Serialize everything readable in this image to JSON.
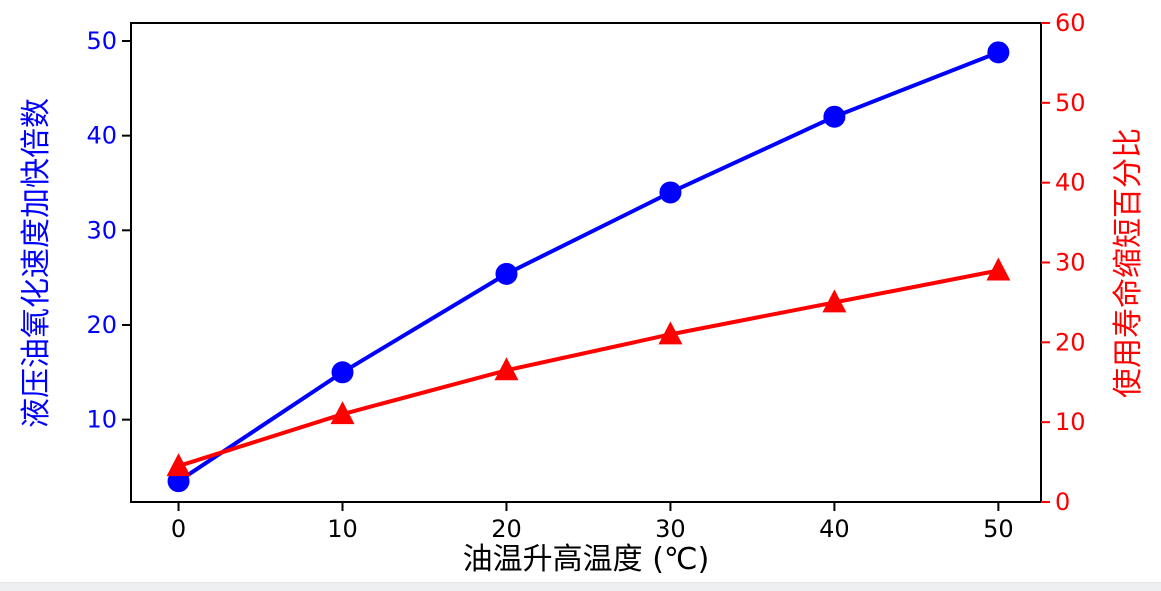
{
  "figure": {
    "background": "#ffffff",
    "bottom_strip_color": "#edeff1"
  },
  "chart_data": {
    "type": "line",
    "title": "",
    "xlabel": "油温升高温度 (℃)",
    "x": [
      0,
      10,
      20,
      30,
      40,
      50
    ],
    "x_ticks": [
      0,
      10,
      20,
      30,
      40,
      50
    ],
    "xlim": [
      -2.9,
      52.6
    ],
    "grid": false,
    "legend": "none",
    "axes": {
      "left": {
        "label": "液压油氧化速度加快倍数",
        "ticks": [
          10,
          20,
          30,
          40,
          50
        ],
        "ylim": [
          1.3,
          51.9
        ],
        "label_color": "#0000ff",
        "tick_label_color": "#0000ff",
        "tick_mark_color": "#000000"
      },
      "right": {
        "label": "使用寿命缩短百分比",
        "ticks": [
          0,
          10,
          20,
          30,
          40,
          50,
          60
        ],
        "ylim": [
          0,
          60
        ],
        "label_color": "#ff0000",
        "tick_label_color": "#ff0000",
        "tick_mark_color": "#ff0000"
      },
      "bottom": {
        "tick_label_color": "#000000",
        "tick_mark_color": "#000000",
        "spine_color": "#000000"
      }
    },
    "series": [
      {
        "name": "液压油氧化速度加快倍数",
        "axis": "left",
        "color": "#0000ff",
        "marker": "circle",
        "line_width": 4,
        "marker_size": 22,
        "values": [
          3.5,
          15,
          25.4,
          34,
          42,
          48.8
        ]
      },
      {
        "name": "使用寿命缩短百分比",
        "axis": "right",
        "color": "#ff0000",
        "marker": "triangle-up",
        "line_width": 4,
        "marker_size": 24,
        "values": [
          4.5,
          11,
          16.5,
          21,
          25,
          29
        ]
      }
    ]
  }
}
